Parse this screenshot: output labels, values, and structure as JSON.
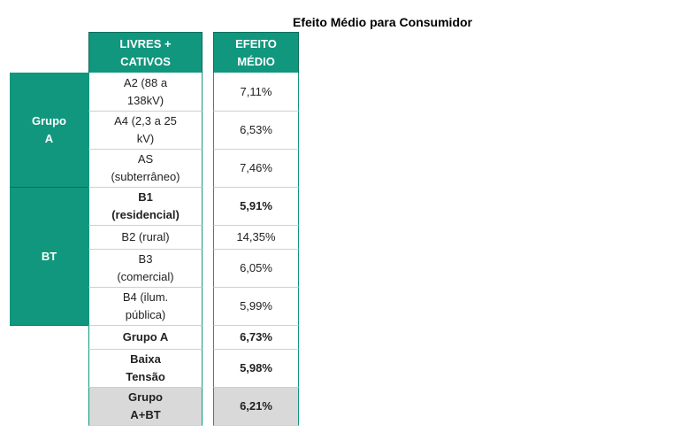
{
  "title": "Efeito Médio para Consumidor",
  "header": [
    "LIVRES + CATIVOS",
    "EFEITO MÉDIO"
  ],
  "groups": [
    {
      "label": "Grupo A",
      "rows": [
        {
          "label": "A2 (88 a 138kV)",
          "value": "7,11%"
        },
        {
          "label": "A4 (2,3 a 25 kV)",
          "value": "6,53%"
        },
        {
          "label": "AS (subterrâneo)",
          "value": "7,46%"
        }
      ]
    },
    {
      "label": "BT",
      "rows": [
        {
          "label": "B1 (residencial)",
          "value": "5,91%",
          "bold": true
        },
        {
          "label": "B2 (rural)",
          "value": "14,35%"
        },
        {
          "label": "B3 (comercial)",
          "value": "6,05%"
        },
        {
          "label": "B4 (ilum. pública)",
          "value": "5,99%"
        }
      ]
    }
  ],
  "totals": [
    {
      "label": "Grupo A",
      "value": "6,73%"
    },
    {
      "label": "Baixa Tensão",
      "value": "5,98%"
    },
    {
      "label": "Grupo A+BT",
      "value": "6,21%"
    }
  ]
}
